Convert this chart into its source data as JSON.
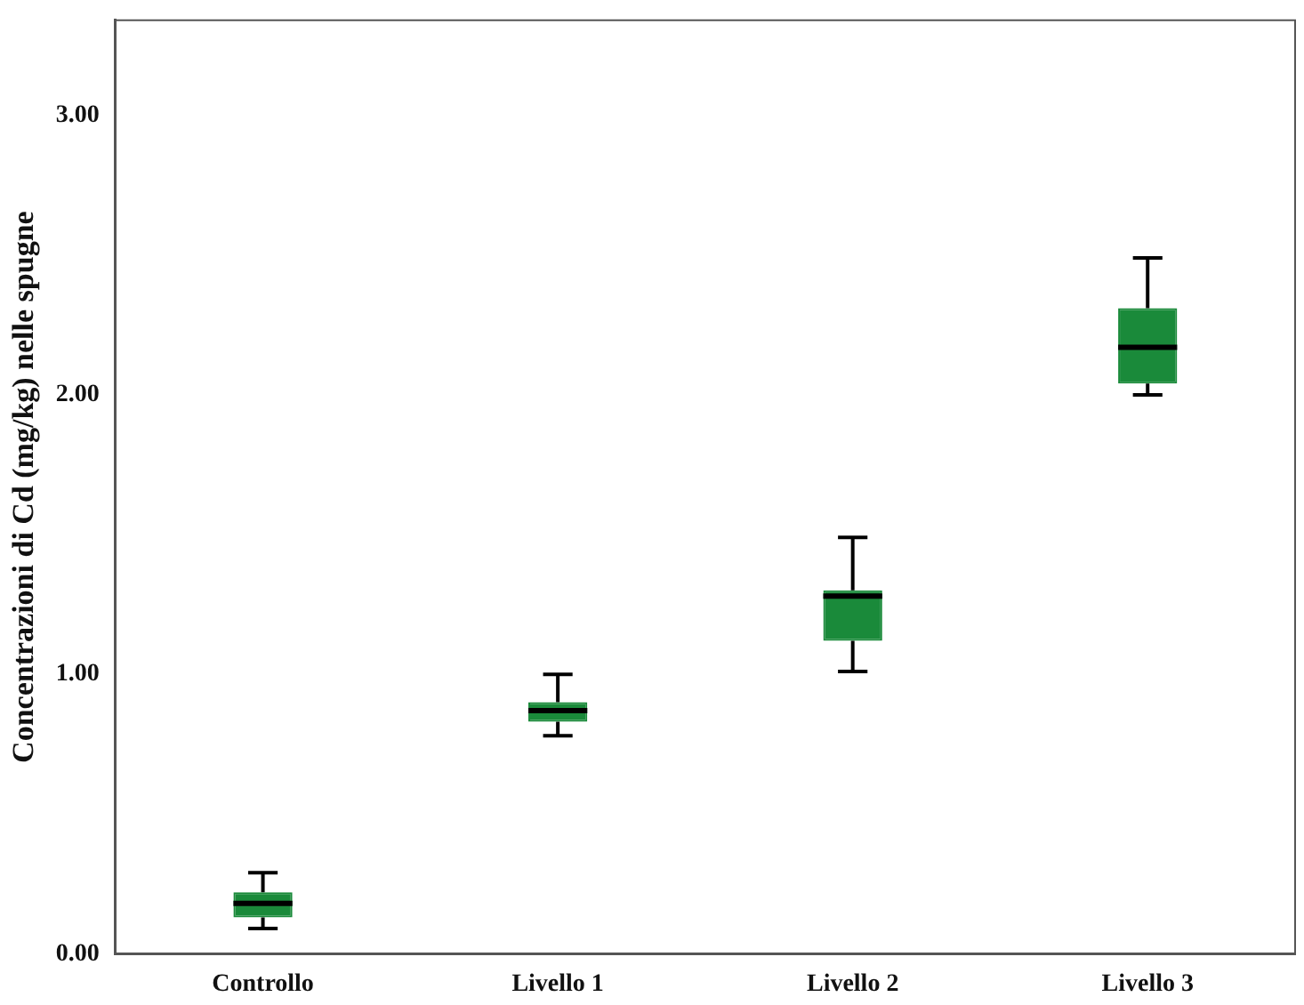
{
  "chart_data": {
    "type": "box",
    "ylabel": "Concentrazioni di Cd (mg/kg) nelle spugne",
    "categories": [
      "Controllo",
      "Livello 1",
      "Livello 2",
      "Livello 3"
    ],
    "color": "#1a8a3a",
    "boxes": [
      {
        "low": 0.09,
        "q1": 0.13,
        "median": 0.18,
        "q3": 0.22,
        "high": 0.29
      },
      {
        "low": 0.78,
        "q1": 0.83,
        "median": 0.87,
        "q3": 0.9,
        "high": 1.0
      },
      {
        "low": 1.01,
        "q1": 1.12,
        "median": 1.28,
        "q3": 1.3,
        "high": 1.49
      },
      {
        "low": 2.0,
        "q1": 2.04,
        "median": 2.17,
        "q3": 2.31,
        "high": 2.49
      }
    ],
    "ylim": [
      0,
      3.34
    ],
    "yticks": [
      {
        "value": 0,
        "label": "0.00"
      },
      {
        "value": 1,
        "label": "1.00"
      },
      {
        "value": 2,
        "label": "2.00"
      },
      {
        "value": 3,
        "label": "3.00"
      }
    ],
    "grid": false,
    "legend": false
  }
}
